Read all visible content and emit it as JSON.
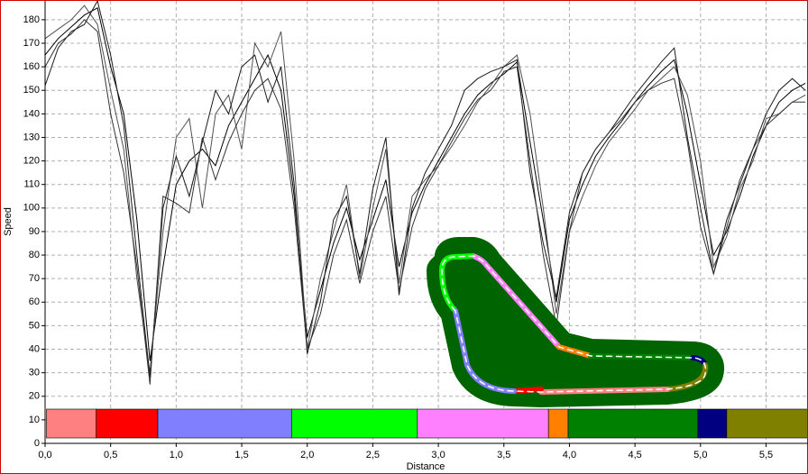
{
  "chart_data": {
    "type": "line",
    "x_label": "Distance",
    "y_label": "Speed",
    "x": [
      0.0,
      0.1,
      0.2,
      0.3,
      0.4,
      0.5,
      0.6,
      0.7,
      0.8,
      0.9,
      1.0,
      1.1,
      1.2,
      1.3,
      1.4,
      1.5,
      1.6,
      1.7,
      1.8,
      1.9,
      2.0,
      2.1,
      2.2,
      2.3,
      2.4,
      2.5,
      2.6,
      2.7,
      2.8,
      2.9,
      3.0,
      3.1,
      3.2,
      3.3,
      3.4,
      3.5,
      3.6,
      3.7,
      3.8,
      3.9,
      4.0,
      4.1,
      4.2,
      4.3,
      4.4,
      4.5,
      4.6,
      4.7,
      4.8,
      4.9,
      5.0,
      5.1,
      5.2,
      5.3,
      5.4,
      5.5,
      5.6,
      5.7,
      5.8
    ],
    "series": [
      {
        "color": "#000000",
        "values": [
          165,
          172,
          177,
          182,
          185,
          160,
          140,
          95,
          35,
          75,
          110,
          120,
          125,
          118,
          135,
          145,
          155,
          165,
          150,
          105,
          45,
          65,
          85,
          100,
          78,
          95,
          112,
          75,
          98,
          110,
          120,
          130,
          140,
          148,
          153,
          157,
          162,
          128,
          95,
          60,
          95,
          110,
          122,
          130,
          137,
          145,
          152,
          158,
          163,
          140,
          110,
          80,
          90,
          105,
          122,
          135,
          145,
          150,
          153
        ]
      },
      {
        "color": "#505050",
        "values": [
          172,
          176,
          180,
          186,
          178,
          150,
          125,
          70,
          30,
          90,
          130,
          138,
          100,
          140,
          148,
          125,
          170,
          160,
          175,
          120,
          40,
          70,
          90,
          110,
          70,
          100,
          125,
          68,
          105,
          112,
          118,
          126,
          135,
          145,
          152,
          160,
          165,
          140,
          100,
          55,
          90,
          105,
          118,
          128,
          135,
          142,
          150,
          155,
          160,
          148,
          120,
          75,
          88,
          108,
          120,
          138,
          140,
          145,
          148
        ]
      },
      {
        "color": "#1a1a1a",
        "values": [
          152,
          168,
          175,
          178,
          188,
          165,
          135,
          80,
          28,
          100,
          122,
          105,
          128,
          150,
          140,
          160,
          165,
          145,
          160,
          110,
          38,
          60,
          95,
          105,
          72,
          108,
          130,
          63,
          100,
          115,
          125,
          135,
          150,
          155,
          158,
          160,
          163,
          115,
          85,
          62,
          98,
          115,
          125,
          132,
          140,
          148,
          155,
          162,
          168,
          130,
          100,
          72,
          95,
          110,
          125,
          140,
          150,
          155,
          150
        ]
      },
      {
        "color": "#333333",
        "values": [
          160,
          170,
          174,
          180,
          175,
          140,
          115,
          75,
          25,
          105,
          102,
          98,
          130,
          112,
          128,
          140,
          150,
          155,
          142,
          100,
          40,
          55,
          80,
          95,
          68,
          90,
          105,
          65,
          92,
          108,
          118,
          128,
          138,
          146,
          150,
          158,
          160,
          120,
          80,
          50,
          90,
          115,
          125,
          132,
          138,
          145,
          150,
          153,
          155,
          128,
          92,
          72,
          92,
          112,
          125,
          135,
          140,
          145,
          145
        ]
      }
    ],
    "segments": [
      {
        "start": 0.01,
        "end": 0.39,
        "color": "#ff8080"
      },
      {
        "start": 0.39,
        "end": 0.86,
        "color": "#ff0000"
      },
      {
        "start": 0.86,
        "end": 1.88,
        "color": "#8080ff"
      },
      {
        "start": 1.88,
        "end": 2.84,
        "color": "#00ff00"
      },
      {
        "start": 2.84,
        "end": 3.84,
        "color": "#ff80ff"
      },
      {
        "start": 3.84,
        "end": 3.99,
        "color": "#ff8000"
      },
      {
        "start": 3.99,
        "end": 4.98,
        "color": "#008000"
      },
      {
        "start": 4.98,
        "end": 5.2,
        "color": "#000080"
      },
      {
        "start": 5.2,
        "end": 5.82,
        "color": "#808000"
      }
    ],
    "xlim": [
      0,
      5.82
    ],
    "ylim": [
      0,
      188
    ],
    "xticks": [
      {
        "value": 0,
        "label": "0,0"
      },
      {
        "value": 0.5,
        "label": "0,5"
      },
      {
        "value": 1,
        "label": "1,0"
      },
      {
        "value": 1.5,
        "label": "1,5"
      },
      {
        "value": 2,
        "label": "2,0"
      },
      {
        "value": 2.5,
        "label": "2,5"
      },
      {
        "value": 3,
        "label": "3,0"
      },
      {
        "value": 3.5,
        "label": "3,5"
      },
      {
        "value": 4,
        "label": "4,0"
      },
      {
        "value": 4.5,
        "label": "4,5"
      },
      {
        "value": 5,
        "label": "5,0"
      },
      {
        "value": 5.5,
        "label": "5,5"
      }
    ],
    "yticks": [
      0,
      10,
      20,
      30,
      40,
      50,
      60,
      70,
      80,
      90,
      100,
      110,
      120,
      130,
      140,
      150,
      160,
      170,
      180
    ],
    "grid": true
  }
}
